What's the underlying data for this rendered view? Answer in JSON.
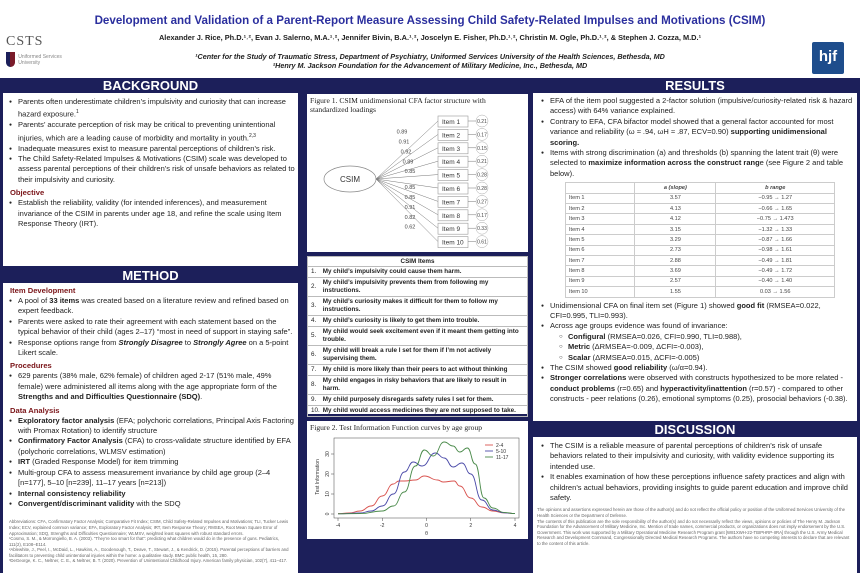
{
  "header": {
    "title": "Development and Validation of a Parent-Report Measure Assessing Child Safety-Related Impulses and Motivations (CSIM)",
    "authors": "Alexander J. Rice, Ph.D.¹˒², Evan J. Salerno, M.A.¹˒², Jennifer Bivin, B.A.¹˒², Joscelyn E. Fisher, Ph.D.¹˒², Christin M. Ogle, Ph.D.¹˒², & Stephen J. Cozza, M.D.¹",
    "affiliation1": "¹Center for the Study of Traumatic Stress, Department of Psychiatry, Uniformed Services University of the Health Sciences, Bethesda, MD",
    "affiliation2": "²Henry M. Jackson Foundation for the Advancement of Military Medicine, Inc., Bethesda, MD",
    "logo_left": "CSTS",
    "logo_left_sub": "Uniformed Services University",
    "logo_right": "hjf"
  },
  "background": {
    "heading": "BACKGROUND",
    "bullets": [
      [
        "Parents often underestimate children’s impulsivity and curiosity that can increase hazard exposure.",
        {
          "sup": "1"
        }
      ],
      [
        "Parents’ accurate perception of risk may be critical to preventing unintentional injuries, which are a leading cause of morbidity and mortality in youth.",
        {
          "sup": "2,3"
        }
      ],
      [
        "Inadequate measures exist to measure parental perceptions of children’s risk."
      ],
      [
        "The Child Safety-Related Impulses & Motivations (CSIM) scale was developed to assess parental perceptions of their children’s risk of unsafe behaviors as related to their impulsivity and curiosity."
      ]
    ],
    "objective_heading": "Objective",
    "objective": [
      [
        "Establish the reliability, validity (for intended inferences), and measurement invariance of the CSIM in parents under age 18, and refine the scale using Item Response Theory (IRT)."
      ]
    ]
  },
  "method": {
    "heading": "METHOD",
    "item_dev_heading": "Item Development",
    "item_dev": [
      [
        "A pool of ",
        {
          "b": "33 items"
        },
        " was created based on a literature review and refined based on expert feedback."
      ],
      [
        "Parents were asked to rate their agreement with each statement based on the typical behavior of their child (ages 2–17) “most in need of support in staying safe”."
      ],
      [
        "Response options range from ",
        {
          "i": "Strongly Disagree"
        },
        " to ",
        {
          "i": "Strongly Agree"
        },
        " on a 5-point Likert scale."
      ]
    ],
    "procedures_heading": "Procedures",
    "procedures": [
      [
        "629 parents (38% male, 62% female) of children aged 2-17 (51% male, 49% female) were administered all items along with the age appropriate form of the ",
        {
          "b": "Strengths and and Difficulties Questionnaire (SDQ)"
        },
        "."
      ]
    ],
    "analysis_heading": "Data Analysis",
    "analysis": [
      [
        {
          "b": "Exploratory factor analysis"
        },
        " (EFA; polychoric correlations, Principal Axis Factoring with Promax Rotation) to identify structure"
      ],
      [
        {
          "b": "Confirmatory Factor Analysis"
        },
        " (CFA) to cross-validate structure identified by EFA (polychoric correlations, WLMSV estimation)"
      ],
      [
        {
          "b": "IRT"
        },
        " (Graded Response Model) for item trimming"
      ],
      [
        "Multi-group CFA to assess measurement invariance by child age group (2–4 [n=177], 5–10 [n=239], 11–17 years [n=213])"
      ],
      [
        {
          "b": "Internal consistency reliability"
        }
      ],
      [
        {
          "b": "Convergent/discriminant validity"
        },
        " with the SDQ"
      ]
    ],
    "footnotes": [
      "Abbreviations: CFA, Confirmatory Factor Analysis; Comparative Fit Index; CSIM, Child Safety-Related Impulses and Motivations; TLI, Tucker Lewis Index; ECV, explained common variance; EFA, Exploratory Factor Analysis; IRT, Item Response Theory; RMSEA, Root Mean Square Error of Approximation; SDQ, Strengths and Difficulties Questionnaire; WLMSV, weighted least squares with robust standard errors.",
      "¹Cosmo, S. M., & Morrongiello, B. A. (2003). “They’re too smart for that”: predicting what children would do in the presence of guns. Pediatrics, 111(2), E108–E114.",
      "²Ablewhite, J., Peel, I., McDaid, L., Hawkins, A., Goodenough, T., Deave, T., Stewart, J., & Kendrick, D. (2015). Parental perceptions of barriers and facilitators to preventing child unintentional injuries within the home: a qualitative study. BMC public health, 15, 280.",
      "³DeGeorge, K. C., Neltner, C. E., & Neltner, B. T. (2020). Prevention of Unintentional Childhood Injury. American family physician, 102(7), 411–417."
    ]
  },
  "figure1": {
    "caption": "Figure 1. CSIM unidimensional CFA factor structure with standardized loadings",
    "latent": "CSIM",
    "items": [
      "Item 1",
      "Item 2",
      "Item 3",
      "Item 4",
      "Item 5",
      "Item 6",
      "Item 7",
      "Item 8",
      "Item 9",
      "Item 10"
    ],
    "loadings": [
      "0.89",
      "0.91",
      "0.92",
      "0.89",
      "0.85",
      "0.85",
      "0.85",
      "0.91",
      "0.82",
      "0.62"
    ],
    "residuals": [
      "0.21",
      "0.17",
      "0.15",
      "0.21",
      "0.28",
      "0.28",
      "0.27",
      "0.17",
      "0.33",
      "0.61"
    ]
  },
  "items_table": {
    "heading": "CSIM Items",
    "rows": [
      {
        "n": "1.",
        "t": "My child’s impulsivity could cause them harm."
      },
      {
        "n": "2.",
        "t": "My child’s impulsivity prevents them from following my instructions."
      },
      {
        "n": "3.",
        "t": "My child’s curiosity makes it difficult for them to follow my instructions."
      },
      {
        "n": "4.",
        "t": "My child’s curiosity is likely to get them into trouble."
      },
      {
        "n": "5.",
        "t": "My child would seek excitement even if it meant them getting into trouble."
      },
      {
        "n": "6.",
        "t": "My child will break a rule I set for them if I’m not actively supervising them."
      },
      {
        "n": "7.",
        "t": "My child is more likely than their peers to act without thinking"
      },
      {
        "n": "8.",
        "t": "My child engages in risky behaviors that are likely to result in harm."
      },
      {
        "n": "9.",
        "t": "My child purposely disregards safety rules I set for them."
      },
      {
        "n": "10.",
        "t": "My child would access medicines they are not supposed to take."
      }
    ]
  },
  "chart_data": {
    "type": "line",
    "title": "Figure 2. Test Information Function curves by age group",
    "xlabel": "θ",
    "ylabel": "Test Information",
    "xlim": [
      -4,
      4
    ],
    "ylim": [
      0,
      37
    ],
    "xticks": [
      "-4",
      "-2",
      "0",
      "2",
      "4"
    ],
    "yticks": [
      "0",
      "10",
      "20",
      "30"
    ],
    "grid": false,
    "legend": "top-right",
    "series": [
      {
        "name": "2-4",
        "color": "#d9534f",
        "x": [
          -4,
          -3.5,
          -3,
          -2.5,
          -2,
          -1.5,
          -1.25,
          -1,
          -0.5,
          -0.1,
          0.5,
          0.75,
          1.25,
          1.5,
          2,
          2.5,
          3,
          3.5,
          4
        ],
        "y": [
          0.2,
          0.5,
          1.5,
          4,
          9,
          15,
          16.5,
          16.5,
          17,
          19,
          17,
          16,
          16.5,
          14,
          8,
          3.5,
          1.5,
          0.6,
          0.2
        ]
      },
      {
        "name": "5-10",
        "color": "#4a4aa8",
        "x": [
          -4,
          -3,
          -2.5,
          -2,
          -1.5,
          -1,
          -0.6,
          -0.2,
          0.4,
          0.8,
          1.2,
          1.6,
          2,
          2.5,
          3,
          3.5,
          4
        ],
        "y": [
          0.1,
          0.5,
          1.5,
          4,
          10,
          21,
          26,
          24,
          30.5,
          28,
          23.5,
          25.5,
          20,
          7,
          2,
          0.6,
          0.2
        ]
      },
      {
        "name": "11-17",
        "color": "#4a8a4a",
        "x": [
          -4,
          -3,
          -2,
          -1.5,
          -1,
          -0.5,
          -0.1,
          0.3,
          0.8,
          1.2,
          1.5,
          1.85,
          2.2,
          2.6,
          3,
          3.5,
          4
        ],
        "y": [
          0.1,
          0.2,
          1.5,
          4,
          11,
          24,
          32,
          29,
          36,
          34,
          31,
          33,
          25,
          8,
          3,
          0.8,
          0.2
        ]
      }
    ]
  },
  "results": {
    "heading": "RESULTS",
    "bullets1": [
      [
        "EFA of the item pool suggested a 2-factor solution (impulsive/curiosity-related risk & hazard access) with 64% variance explained."
      ],
      [
        "Contrary to EFA, CFA bifactor model showed that a general factor accounted for most variance and reliability (ω ≈ .94, ωH ≈ .87, ECV=0.90) ",
        {
          "b": "supporting unidimensional scoring."
        }
      ],
      [
        "Items with strong discrimination (a) and thresholds (b) spanning the latent trait (θ) were selected to ",
        {
          "b": "maximize information across the construct rang"
        },
        "e (see Figure 2 and table below)."
      ]
    ],
    "irt_headers": [
      "",
      "a (slope)",
      "b range"
    ],
    "irt_rows": [
      [
        "Item 1",
        "3.57",
        "−0.95 → 1.27"
      ],
      [
        "Item 2",
        "4.13",
        "−0.66 → 1.65"
      ],
      [
        "Item 3",
        "4.12",
        "−0.75 → 1.473"
      ],
      [
        "Item 4",
        "3.15",
        "−1.32 → 1.33"
      ],
      [
        "Item 5",
        "3.29",
        "−0.87 → 1.66"
      ],
      [
        "Item 6",
        "2.73",
        "−0.98 → 1.61"
      ],
      [
        "Item 7",
        "2.88",
        "−0.49 → 1.81"
      ],
      [
        "Item 8",
        "3.69",
        "−0.49 → 1.72"
      ],
      [
        "Item 9",
        "2.57",
        "−0.40 → 1.40"
      ],
      [
        "Item 10",
        "1.55",
        "0.03 → 1.56"
      ]
    ],
    "bullets2": [
      [
        "Unidimensional CFA on final item set (Figure 1) showed ",
        {
          "b": "good fit"
        },
        " (RMSEA=0.022, CFI=0.995, TLI=0.993)."
      ],
      [
        "Across age groups evidence was found of invariance:"
      ]
    ],
    "invariance": [
      [
        {
          "b": "Configural"
        },
        " (RMSEA=0.026, CFI=0.990, TLI=0.988),"
      ],
      [
        {
          "b": "Metric"
        },
        " (ΔRMSEA=-0.009, ΔCFI=-0.003),"
      ],
      [
        {
          "b": "Scalar"
        },
        " (ΔRMSEA=0.015, ΔCFI=-0.005)"
      ]
    ],
    "bullets3": [
      [
        "The CSIM showed ",
        {
          "b": "good reliability"
        },
        " (ω/α=0.94)."
      ],
      [
        {
          "b": "Stronger correlations"
        },
        " were observed with constructs hypothesized to be more related - ",
        {
          "b": "conduct problems"
        },
        " (r=0.65) and ",
        {
          "b": "hyperactivity/inattention"
        },
        " (r=0.57) - compared to other constructs - peer relations (0.26), emotional symptoms (0.25), prosocial behaviors (-0.38)."
      ]
    ]
  },
  "discussion": {
    "heading": "DISCUSSION",
    "bullets": [
      [
        "The CSIM is a reliable measure of parental perceptions of children’s risk of unsafe behaviors related to their impulsivity and curiosity, with validity evidence supporting its intended use."
      ],
      [
        "It enables examination of how these perceptions influence safety practices and align with children’s actual behaviors, providing insights to guide parent education and improve child safety."
      ]
    ],
    "disclaimer1": "The opinions and assertions expressed herein are those of the author(s) and do not reflect the official policy or position of the Uniformed Services University of the Health Sciences or the Department of Defense.",
    "disclaimer2": "The contents of this publication are the sole responsibility of the author(s) and do not necessarily reflect the views, opinions or policies of The Henry M. Jackson Foundation for the Advancement of Military Medicine, Inc. Mention of trade names, commercial products, or organizations does not imply endorsement by the U.S. Government. This work was supported by a Military Operational Medicine Research Program grant [W81XWH-22-TBIPHRP-IIRA] through the U.S. Army Medical Research and Development Command, Congressionally Directed Medical Research Programs. The authors have no competing interests to declare that are relevant to the content of this article."
  }
}
